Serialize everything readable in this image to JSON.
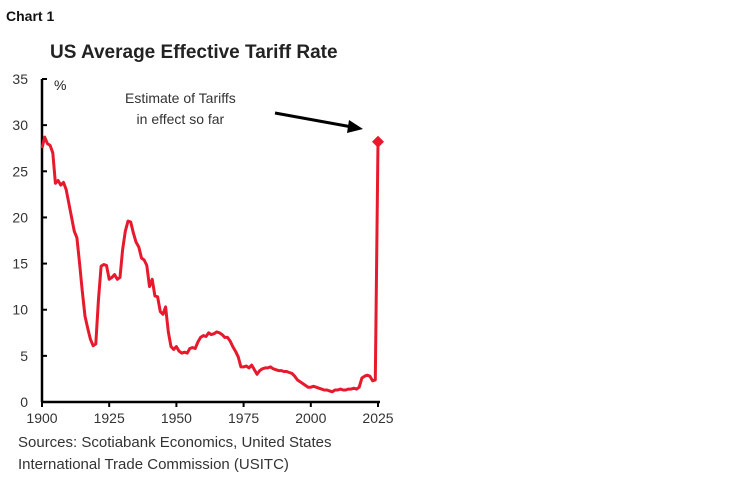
{
  "header": {
    "chart_label": "Chart 1"
  },
  "chart_data": {
    "type": "line",
    "title": "US Average Effective Tariff Rate",
    "ylabel": "%",
    "xlabel": "",
    "xlim": [
      1900,
      2025
    ],
    "ylim": [
      0,
      35
    ],
    "xticks": [
      1900,
      1925,
      1950,
      1975,
      2000,
      2025
    ],
    "yticks": [
      0,
      5,
      10,
      15,
      20,
      25,
      30,
      35
    ],
    "grid": false,
    "line_color": "#e8192c",
    "annotation": {
      "lines": [
        "Estimate of Tariffs",
        "in effect so far"
      ],
      "target": [
        2025,
        28.2
      ]
    },
    "series": [
      {
        "x": [
          1900,
          1901,
          1902,
          1903,
          1904,
          1905,
          1906,
          1907,
          1908,
          1909,
          1910,
          1911,
          1912,
          1913,
          1914,
          1915,
          1916,
          1917,
          1918,
          1919,
          1920,
          1921,
          1922,
          1923,
          1924,
          1925,
          1926,
          1927,
          1928,
          1929,
          1930,
          1931,
          1932,
          1933,
          1934,
          1935,
          1936,
          1937,
          1938,
          1939,
          1940,
          1941,
          1942,
          1943,
          1944,
          1945,
          1946,
          1947,
          1948,
          1949,
          1950,
          1951,
          1952,
          1953,
          1954,
          1955,
          1956,
          1957,
          1958,
          1959,
          1960,
          1961,
          1962,
          1963,
          1964,
          1965,
          1966,
          1967,
          1968,
          1969,
          1970,
          1971,
          1972,
          1973,
          1974,
          1975,
          1976,
          1977,
          1978,
          1979,
          1980,
          1981,
          1982,
          1983,
          1984,
          1985,
          1986,
          1987,
          1988,
          1989,
          1990,
          1991,
          1992,
          1993,
          1994,
          1995,
          1996,
          1997,
          1998,
          1999,
          2000,
          2001,
          2002,
          2003,
          2004,
          2005,
          2006,
          2007,
          2008,
          2009,
          2010,
          2011,
          2012,
          2013,
          2014,
          2015,
          2016,
          2017,
          2018,
          2019,
          2020,
          2021,
          2022,
          2023,
          2024,
          2025
        ],
        "y": [
          27.5,
          28.7,
          28,
          27.8,
          27,
          23.7,
          24,
          23.5,
          23.8,
          23,
          21.5,
          20,
          18.5,
          17.8,
          15,
          12,
          9.3,
          8,
          6.8,
          6.1,
          6.3,
          11,
          14.7,
          14.9,
          14.8,
          13.3,
          13.5,
          13.8,
          13.3,
          13.5,
          16.5,
          18.5,
          19.6,
          19.5,
          18.3,
          17.3,
          16.8,
          15.6,
          15.4,
          14.8,
          12.5,
          13.3,
          11.5,
          11.4,
          9.8,
          9.5,
          10.3,
          7.6,
          6,
          5.7,
          6,
          5.5,
          5.3,
          5.4,
          5.3,
          5.8,
          5.9,
          5.8,
          6.5,
          7,
          7.2,
          7.1,
          7.5,
          7.3,
          7.4,
          7.6,
          7.5,
          7.3,
          7,
          7,
          6.6,
          6,
          5.5,
          4.9,
          3.8,
          3.8,
          3.9,
          3.7,
          4,
          3.5,
          3,
          3.4,
          3.6,
          3.7,
          3.7,
          3.8,
          3.6,
          3.5,
          3.4,
          3.4,
          3.3,
          3.3,
          3.2,
          3.1,
          2.8,
          2.4,
          2.2,
          2,
          1.8,
          1.6,
          1.6,
          1.7,
          1.6,
          1.5,
          1.4,
          1.3,
          1.3,
          1.2,
          1.1,
          1.3,
          1.3,
          1.4,
          1.3,
          1.3,
          1.4,
          1.4,
          1.5,
          1.4,
          1.6,
          2.6,
          2.8,
          2.9,
          2.8,
          2.3,
          2.4,
          28.2
        ]
      }
    ]
  },
  "footer": {
    "sources_line1": "Sources: Scotiabank Economics, United States",
    "sources_line2": "International Trade Commission (USITC)"
  }
}
